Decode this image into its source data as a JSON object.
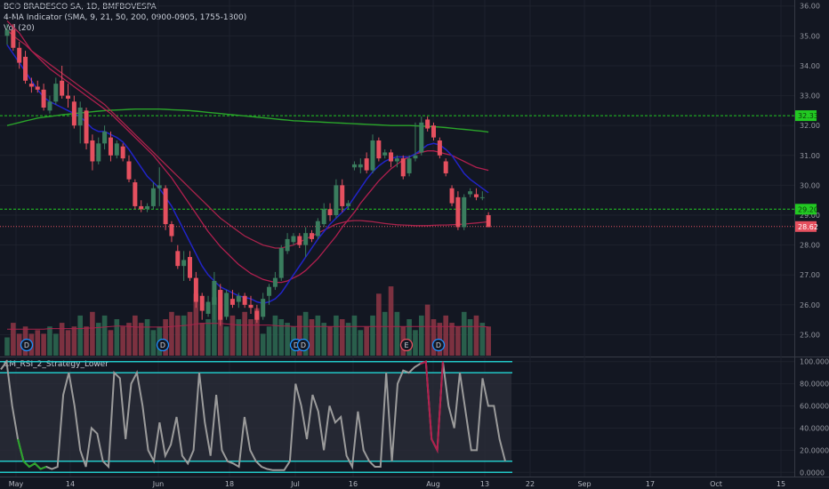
{
  "header": {
    "symbol_line": "BCO BRADESCO SA, 1D, BMFBOVESPA",
    "ma_line": "4-MA Indicator (SMA, 9, 21, 50, 200, 0900-0905, 1755-1800)",
    "vol_line": "Vol (20)",
    "indicator_title": "CM_RSI_2_Strategy_Lower"
  },
  "colors": {
    "background": "#131722",
    "up": "#3a7d5e",
    "down": "#e5505f",
    "volume_up": "#2e6b52",
    "volume_down": "#8f3645",
    "sma9": "#2124c8",
    "sma21": "#b11f4f",
    "sma50": "#a8234b",
    "sma200": "#2aa52a",
    "level_green": "#22c922",
    "rsi_line": "#9b9b9b",
    "rsi_band": "#22c7c7",
    "rsi_oversold": "#2aa52a",
    "rsi_overbought": "#b41e4c"
  },
  "chart_data": [
    {
      "type": "candlestick",
      "title": "BCO BRADESCO SA, 1D, BMFBOVESPA",
      "ylim": [
        24.3,
        36.2
      ],
      "y_ticks": [
        "25.00",
        "26.00",
        "27.00",
        "28.00",
        "29.00",
        "30.00",
        "31.00",
        "32.00",
        "33.00",
        "34.00",
        "35.00",
        "36.00"
      ],
      "x_ticks": [
        "May",
        "14",
        "Jun",
        "18",
        "Jul",
        "16",
        "Aug",
        "13",
        "22",
        "Sep",
        "17",
        "Oct",
        "15"
      ],
      "price_tags": [
        {
          "label": "32.33",
          "value": 32.33,
          "style": "green"
        },
        {
          "label": "29.20",
          "value": 29.2,
          "style": "green"
        },
        {
          "label": "28.62",
          "value": 28.62,
          "style": "red"
        }
      ],
      "event_markers": [
        "D",
        "D",
        "D",
        "D",
        "E",
        "D"
      ],
      "candles": [
        {
          "o": 35.0,
          "h": 35.4,
          "l": 34.7,
          "c": 35.2
        },
        {
          "o": 35.2,
          "h": 35.4,
          "l": 34.5,
          "c": 34.6
        },
        {
          "o": 34.6,
          "h": 34.8,
          "l": 33.9,
          "c": 34.1
        },
        {
          "o": 34.3,
          "h": 34.5,
          "l": 33.4,
          "c": 33.5
        },
        {
          "o": 33.4,
          "h": 33.6,
          "l": 33.1,
          "c": 33.3
        },
        {
          "o": 33.3,
          "h": 33.5,
          "l": 33.1,
          "c": 33.2
        },
        {
          "o": 33.2,
          "h": 33.4,
          "l": 32.5,
          "c": 32.6
        },
        {
          "o": 32.5,
          "h": 33.0,
          "l": 32.4,
          "c": 32.8
        },
        {
          "o": 32.8,
          "h": 33.6,
          "l": 32.7,
          "c": 33.4
        },
        {
          "o": 33.5,
          "h": 34.0,
          "l": 32.9,
          "c": 33.0
        },
        {
          "o": 33.0,
          "h": 33.4,
          "l": 32.6,
          "c": 32.9
        },
        {
          "o": 32.8,
          "h": 33.0,
          "l": 31.9,
          "c": 32.0
        },
        {
          "o": 32.0,
          "h": 32.8,
          "l": 31.4,
          "c": 32.6
        },
        {
          "o": 32.5,
          "h": 32.6,
          "l": 31.2,
          "c": 31.4
        },
        {
          "o": 31.5,
          "h": 31.7,
          "l": 30.5,
          "c": 30.8
        },
        {
          "o": 30.8,
          "h": 31.6,
          "l": 30.7,
          "c": 31.4
        },
        {
          "o": 31.4,
          "h": 32.0,
          "l": 31.2,
          "c": 31.8
        },
        {
          "o": 31.6,
          "h": 31.8,
          "l": 30.8,
          "c": 31.0
        },
        {
          "o": 31.0,
          "h": 31.5,
          "l": 30.9,
          "c": 31.4
        },
        {
          "o": 31.3,
          "h": 31.4,
          "l": 30.8,
          "c": 30.9
        },
        {
          "o": 30.8,
          "h": 31.0,
          "l": 30.1,
          "c": 30.2
        },
        {
          "o": 30.1,
          "h": 30.2,
          "l": 29.2,
          "c": 29.3
        },
        {
          "o": 29.3,
          "h": 29.5,
          "l": 29.1,
          "c": 29.2
        },
        {
          "o": 29.2,
          "h": 29.4,
          "l": 29.1,
          "c": 29.3
        },
        {
          "o": 29.3,
          "h": 30.1,
          "l": 29.2,
          "c": 29.9
        },
        {
          "o": 29.9,
          "h": 30.6,
          "l": 29.3,
          "c": 30.0
        },
        {
          "o": 29.9,
          "h": 30.0,
          "l": 28.5,
          "c": 28.7
        },
        {
          "o": 28.7,
          "h": 28.8,
          "l": 28.1,
          "c": 28.3
        },
        {
          "o": 27.8,
          "h": 28.0,
          "l": 27.2,
          "c": 27.3
        },
        {
          "o": 27.3,
          "h": 27.8,
          "l": 26.8,
          "c": 27.5
        },
        {
          "o": 27.6,
          "h": 27.8,
          "l": 26.8,
          "c": 26.9
        },
        {
          "o": 26.9,
          "h": 27.1,
          "l": 25.9,
          "c": 26.1
        },
        {
          "o": 26.3,
          "h": 26.4,
          "l": 25.5,
          "c": 25.8
        },
        {
          "o": 25.7,
          "h": 26.3,
          "l": 25.6,
          "c": 26.1
        },
        {
          "o": 26.0,
          "h": 27.1,
          "l": 25.5,
          "c": 26.8
        },
        {
          "o": 26.5,
          "h": 26.7,
          "l": 25.3,
          "c": 25.5
        },
        {
          "o": 25.6,
          "h": 26.5,
          "l": 25.5,
          "c": 26.4
        },
        {
          "o": 26.2,
          "h": 26.5,
          "l": 25.9,
          "c": 26.0
        },
        {
          "o": 26.1,
          "h": 26.4,
          "l": 25.9,
          "c": 26.3
        },
        {
          "o": 26.3,
          "h": 26.4,
          "l": 25.9,
          "c": 26.0
        },
        {
          "o": 26.0,
          "h": 26.3,
          "l": 25.7,
          "c": 25.9
        },
        {
          "o": 25.8,
          "h": 26.0,
          "l": 25.4,
          "c": 25.5
        },
        {
          "o": 25.6,
          "h": 26.4,
          "l": 25.5,
          "c": 26.2
        },
        {
          "o": 26.3,
          "h": 26.7,
          "l": 26.0,
          "c": 26.6
        },
        {
          "o": 26.6,
          "h": 27.1,
          "l": 26.5,
          "c": 26.9
        },
        {
          "o": 26.9,
          "h": 28.0,
          "l": 26.8,
          "c": 27.9
        },
        {
          "o": 27.8,
          "h": 28.4,
          "l": 27.7,
          "c": 28.2
        },
        {
          "o": 28.1,
          "h": 28.4,
          "l": 28.0,
          "c": 28.3
        },
        {
          "o": 28.3,
          "h": 28.4,
          "l": 27.9,
          "c": 28.0
        },
        {
          "o": 28.0,
          "h": 28.6,
          "l": 27.6,
          "c": 28.4
        },
        {
          "o": 28.4,
          "h": 28.5,
          "l": 28.1,
          "c": 28.2
        },
        {
          "o": 28.3,
          "h": 28.9,
          "l": 28.2,
          "c": 28.8
        },
        {
          "o": 28.7,
          "h": 29.4,
          "l": 28.6,
          "c": 29.2
        },
        {
          "o": 29.2,
          "h": 29.4,
          "l": 28.8,
          "c": 29.0
        },
        {
          "o": 29.0,
          "h": 30.2,
          "l": 28.9,
          "c": 30.0
        },
        {
          "o": 30.0,
          "h": 30.2,
          "l": 29.1,
          "c": 29.3
        },
        {
          "o": 29.3,
          "h": 29.5,
          "l": 29.2,
          "c": 29.4
        },
        {
          "o": 30.6,
          "h": 30.8,
          "l": 30.5,
          "c": 30.7
        },
        {
          "o": 30.6,
          "h": 30.9,
          "l": 30.4,
          "c": 30.7
        },
        {
          "o": 30.9,
          "h": 31.1,
          "l": 30.4,
          "c": 30.5
        },
        {
          "o": 30.5,
          "h": 31.7,
          "l": 30.4,
          "c": 31.5
        },
        {
          "o": 31.5,
          "h": 31.6,
          "l": 30.8,
          "c": 30.9
        },
        {
          "o": 31.0,
          "h": 31.2,
          "l": 30.9,
          "c": 31.1
        },
        {
          "o": 31.1,
          "h": 31.2,
          "l": 30.6,
          "c": 30.8
        },
        {
          "o": 30.8,
          "h": 31.0,
          "l": 30.6,
          "c": 30.9
        },
        {
          "o": 30.9,
          "h": 31.0,
          "l": 30.2,
          "c": 30.3
        },
        {
          "o": 30.4,
          "h": 31.0,
          "l": 30.3,
          "c": 30.9
        },
        {
          "o": 30.9,
          "h": 32.1,
          "l": 30.8,
          "c": 31.0
        },
        {
          "o": 31.1,
          "h": 32.3,
          "l": 31.0,
          "c": 32.1
        },
        {
          "o": 32.2,
          "h": 32.3,
          "l": 31.8,
          "c": 31.9
        },
        {
          "o": 32.0,
          "h": 32.1,
          "l": 31.5,
          "c": 31.6
        },
        {
          "o": 31.5,
          "h": 31.6,
          "l": 30.9,
          "c": 31.0
        },
        {
          "o": 30.8,
          "h": 30.9,
          "l": 30.3,
          "c": 30.4
        },
        {
          "o": 29.9,
          "h": 30.0,
          "l": 29.3,
          "c": 29.4
        },
        {
          "o": 29.6,
          "h": 29.8,
          "l": 28.5,
          "c": 28.6
        },
        {
          "o": 28.6,
          "h": 29.7,
          "l": 28.5,
          "c": 29.6
        },
        {
          "o": 29.7,
          "h": 29.9,
          "l": 29.6,
          "c": 29.8
        },
        {
          "o": 29.7,
          "h": 29.9,
          "l": 29.5,
          "c": 29.6
        },
        {
          "o": 29.6,
          "h": 29.8,
          "l": 29.5,
          "c": 29.6
        },
        {
          "o": 29.0,
          "h": 29.1,
          "l": 28.6,
          "c": 28.6
        }
      ],
      "sma9": [
        34.7,
        34.4,
        34.1,
        33.8,
        33.5,
        33.2,
        32.95,
        32.8,
        32.7,
        32.6,
        32.5,
        32.4,
        32.3,
        32.1,
        31.9,
        31.8,
        31.8,
        31.7,
        31.6,
        31.45,
        31.2,
        30.9,
        30.6,
        30.3,
        30.1,
        29.9,
        29.6,
        29.3,
        28.9,
        28.5,
        28.1,
        27.7,
        27.3,
        27.0,
        26.8,
        26.6,
        26.5,
        26.4,
        26.3,
        26.25,
        26.2,
        26.1,
        26.05,
        26.1,
        26.2,
        26.4,
        26.7,
        27.0,
        27.3,
        27.6,
        27.9,
        28.2,
        28.45,
        28.7,
        28.9,
        29.1,
        29.3,
        29.6,
        29.9,
        30.2,
        30.45,
        30.65,
        30.8,
        30.9,
        30.95,
        30.95,
        30.95,
        31.05,
        31.2,
        31.35,
        31.4,
        31.35,
        31.2,
        31.0,
        30.7,
        30.4,
        30.2,
        30.05,
        29.9,
        29.75
      ],
      "sma21": [
        35.5,
        35.3,
        35.1,
        34.8,
        34.5,
        34.3,
        34.1,
        33.9,
        33.75,
        33.6,
        33.45,
        33.3,
        33.15,
        33.0,
        32.85,
        32.7,
        32.55,
        32.4,
        32.2,
        32.0,
        31.8,
        31.6,
        31.4,
        31.2,
        31.0,
        30.75,
        30.5,
        30.25,
        29.95,
        29.65,
        29.35,
        29.05,
        28.75,
        28.45,
        28.2,
        27.95,
        27.75,
        27.55,
        27.35,
        27.2,
        27.05,
        26.95,
        26.85,
        26.8,
        26.75,
        26.75,
        26.8,
        26.9,
        27.0,
        27.15,
        27.35,
        27.55,
        27.8,
        28.05,
        28.3,
        28.6,
        28.85,
        29.1,
        29.4,
        29.65,
        29.9,
        30.15,
        30.35,
        30.55,
        30.7,
        30.85,
        30.95,
        31.05,
        31.1,
        31.15,
        31.15,
        31.1,
        31.05,
        31.0,
        30.9,
        30.8,
        30.7,
        30.6,
        30.55,
        30.5
      ],
      "sma50": [
        35.2,
        35.0,
        34.85,
        34.7,
        34.5,
        34.35,
        34.2,
        34.05,
        33.9,
        33.75,
        33.6,
        33.45,
        33.3,
        33.15,
        33.0,
        32.85,
        32.7,
        32.5,
        32.3,
        32.1,
        31.9,
        31.7,
        31.5,
        31.3,
        31.1,
        30.9,
        30.7,
        30.5,
        30.3,
        30.1,
        29.9,
        29.7,
        29.5,
        29.3,
        29.1,
        28.9,
        28.75,
        28.6,
        28.45,
        28.3,
        28.2,
        28.1,
        28.0,
        27.95,
        27.9,
        27.9,
        27.95,
        28.0,
        28.1,
        28.2,
        28.3,
        28.4,
        28.5,
        28.6,
        28.7,
        28.75,
        28.8,
        28.82,
        28.82,
        28.8,
        28.78,
        28.75,
        28.72,
        28.7,
        28.68,
        28.67,
        28.66,
        28.65,
        28.65,
        28.65,
        28.66,
        28.67,
        28.67,
        28.68,
        28.69,
        28.7,
        28.72,
        28.74,
        28.76,
        28.78
      ],
      "sma200": [
        32.0,
        32.05,
        32.1,
        32.15,
        32.2,
        32.25,
        32.28,
        32.3,
        32.33,
        32.36,
        32.38,
        32.4,
        32.42,
        32.44,
        32.46,
        32.48,
        32.5,
        32.51,
        32.52,
        32.53,
        32.54,
        32.55,
        32.55,
        32.55,
        32.55,
        32.55,
        32.54,
        32.53,
        32.52,
        32.51,
        32.5,
        32.48,
        32.46,
        32.44,
        32.42,
        32.4,
        32.38,
        32.36,
        32.34,
        32.32,
        32.3,
        32.28,
        32.26,
        32.24,
        32.22,
        32.2,
        32.18,
        32.16,
        32.15,
        32.14,
        32.13,
        32.12,
        32.11,
        32.1,
        32.09,
        32.08,
        32.07,
        32.06,
        32.05,
        32.04,
        32.03,
        32.02,
        32.01,
        32.0,
        32.0,
        32.0,
        32.0,
        31.99,
        31.98,
        31.97,
        31.96,
        31.95,
        31.93,
        31.91,
        31.89,
        31.87,
        31.85,
        31.83,
        31.81,
        31.78
      ]
    },
    {
      "type": "bar",
      "title": "Vol (20)",
      "ylim": [
        0,
        1
      ],
      "values": [
        0.25,
        0.45,
        0.3,
        0.4,
        0.3,
        0.35,
        0.3,
        0.4,
        0.3,
        0.45,
        0.35,
        0.4,
        0.55,
        0.4,
        0.6,
        0.45,
        0.55,
        0.35,
        0.5,
        0.4,
        0.45,
        0.55,
        0.45,
        0.5,
        0.35,
        0.4,
        0.5,
        0.6,
        0.55,
        0.55,
        0.6,
        0.85,
        0.45,
        0.5,
        0.8,
        0.9,
        0.4,
        0.55,
        0.5,
        0.6,
        0.5,
        0.65,
        0.3,
        0.4,
        0.55,
        0.5,
        0.45,
        0.4,
        0.55,
        0.6,
        0.5,
        0.55,
        0.45,
        0.4,
        0.55,
        0.5,
        0.45,
        0.55,
        0.35,
        0.4,
        0.55,
        0.85,
        0.6,
        0.95,
        0.6,
        0.4,
        0.5,
        0.35,
        0.55,
        0.7,
        0.5,
        0.45,
        0.55,
        0.45,
        0.4,
        0.6,
        0.5,
        0.55,
        0.45,
        0.4
      ],
      "ma": [
        0.52,
        0.52,
        0.52,
        0.52,
        0.52,
        0.52,
        0.52,
        0.53,
        0.53,
        0.53,
        0.53,
        0.53,
        0.53,
        0.54,
        0.54,
        0.55,
        0.56,
        0.57,
        0.58,
        0.58,
        0.57,
        0.56,
        0.56,
        0.56,
        0.56,
        0.56,
        0.56,
        0.57,
        0.58,
        0.59,
        0.6,
        0.62,
        0.63,
        0.63,
        0.63,
        0.63,
        0.62,
        0.61,
        0.6,
        0.6,
        0.6,
        0.6,
        0.6,
        0.6,
        0.59,
        0.58,
        0.58,
        0.57,
        0.57,
        0.57,
        0.57,
        0.57,
        0.57,
        0.57,
        0.57,
        0.57,
        0.57,
        0.57,
        0.57,
        0.57,
        0.57,
        0.57,
        0.57,
        0.57,
        0.57,
        0.57,
        0.57,
        0.57,
        0.57,
        0.57,
        0.57,
        0.57,
        0.57,
        0.57,
        0.57,
        0.57,
        0.57,
        0.57,
        0.57,
        0.56
      ]
    },
    {
      "type": "line",
      "title": "CM_RSI_2_Strategy_Lower",
      "ylim": [
        -3,
        103
      ],
      "y_ticks": [
        "0.0000",
        "20.0000",
        "40.0000",
        "60.0000",
        "80.0000",
        "100.0000"
      ],
      "bands": [
        10,
        90
      ],
      "series": [
        {
          "values": [
            93,
            100,
            60,
            30,
            10,
            5,
            8,
            3,
            5,
            3,
            5,
            70,
            90,
            60,
            20,
            5,
            40,
            35,
            10,
            5,
            90,
            85,
            30,
            80,
            90,
            60,
            20,
            10,
            45,
            15,
            25,
            50,
            15,
            8,
            20,
            90,
            45,
            15,
            70,
            20,
            10,
            8,
            5,
            50,
            20,
            10,
            5,
            3,
            2,
            2,
            2,
            10,
            80,
            60,
            30,
            70,
            55,
            20,
            60,
            45,
            50,
            15,
            5,
            55,
            20,
            10,
            5,
            5,
            90,
            10,
            80,
            92,
            90,
            95,
            98,
            100,
            30,
            20,
            100,
            60,
            40,
            90,
            55,
            20,
            20,
            85,
            60,
            60,
            30,
            10
          ],
          "oversold_segments": [
            [
              3,
              8
            ]
          ],
          "overbought_segments": [
            [
              74,
              78
            ]
          ]
        }
      ]
    }
  ]
}
